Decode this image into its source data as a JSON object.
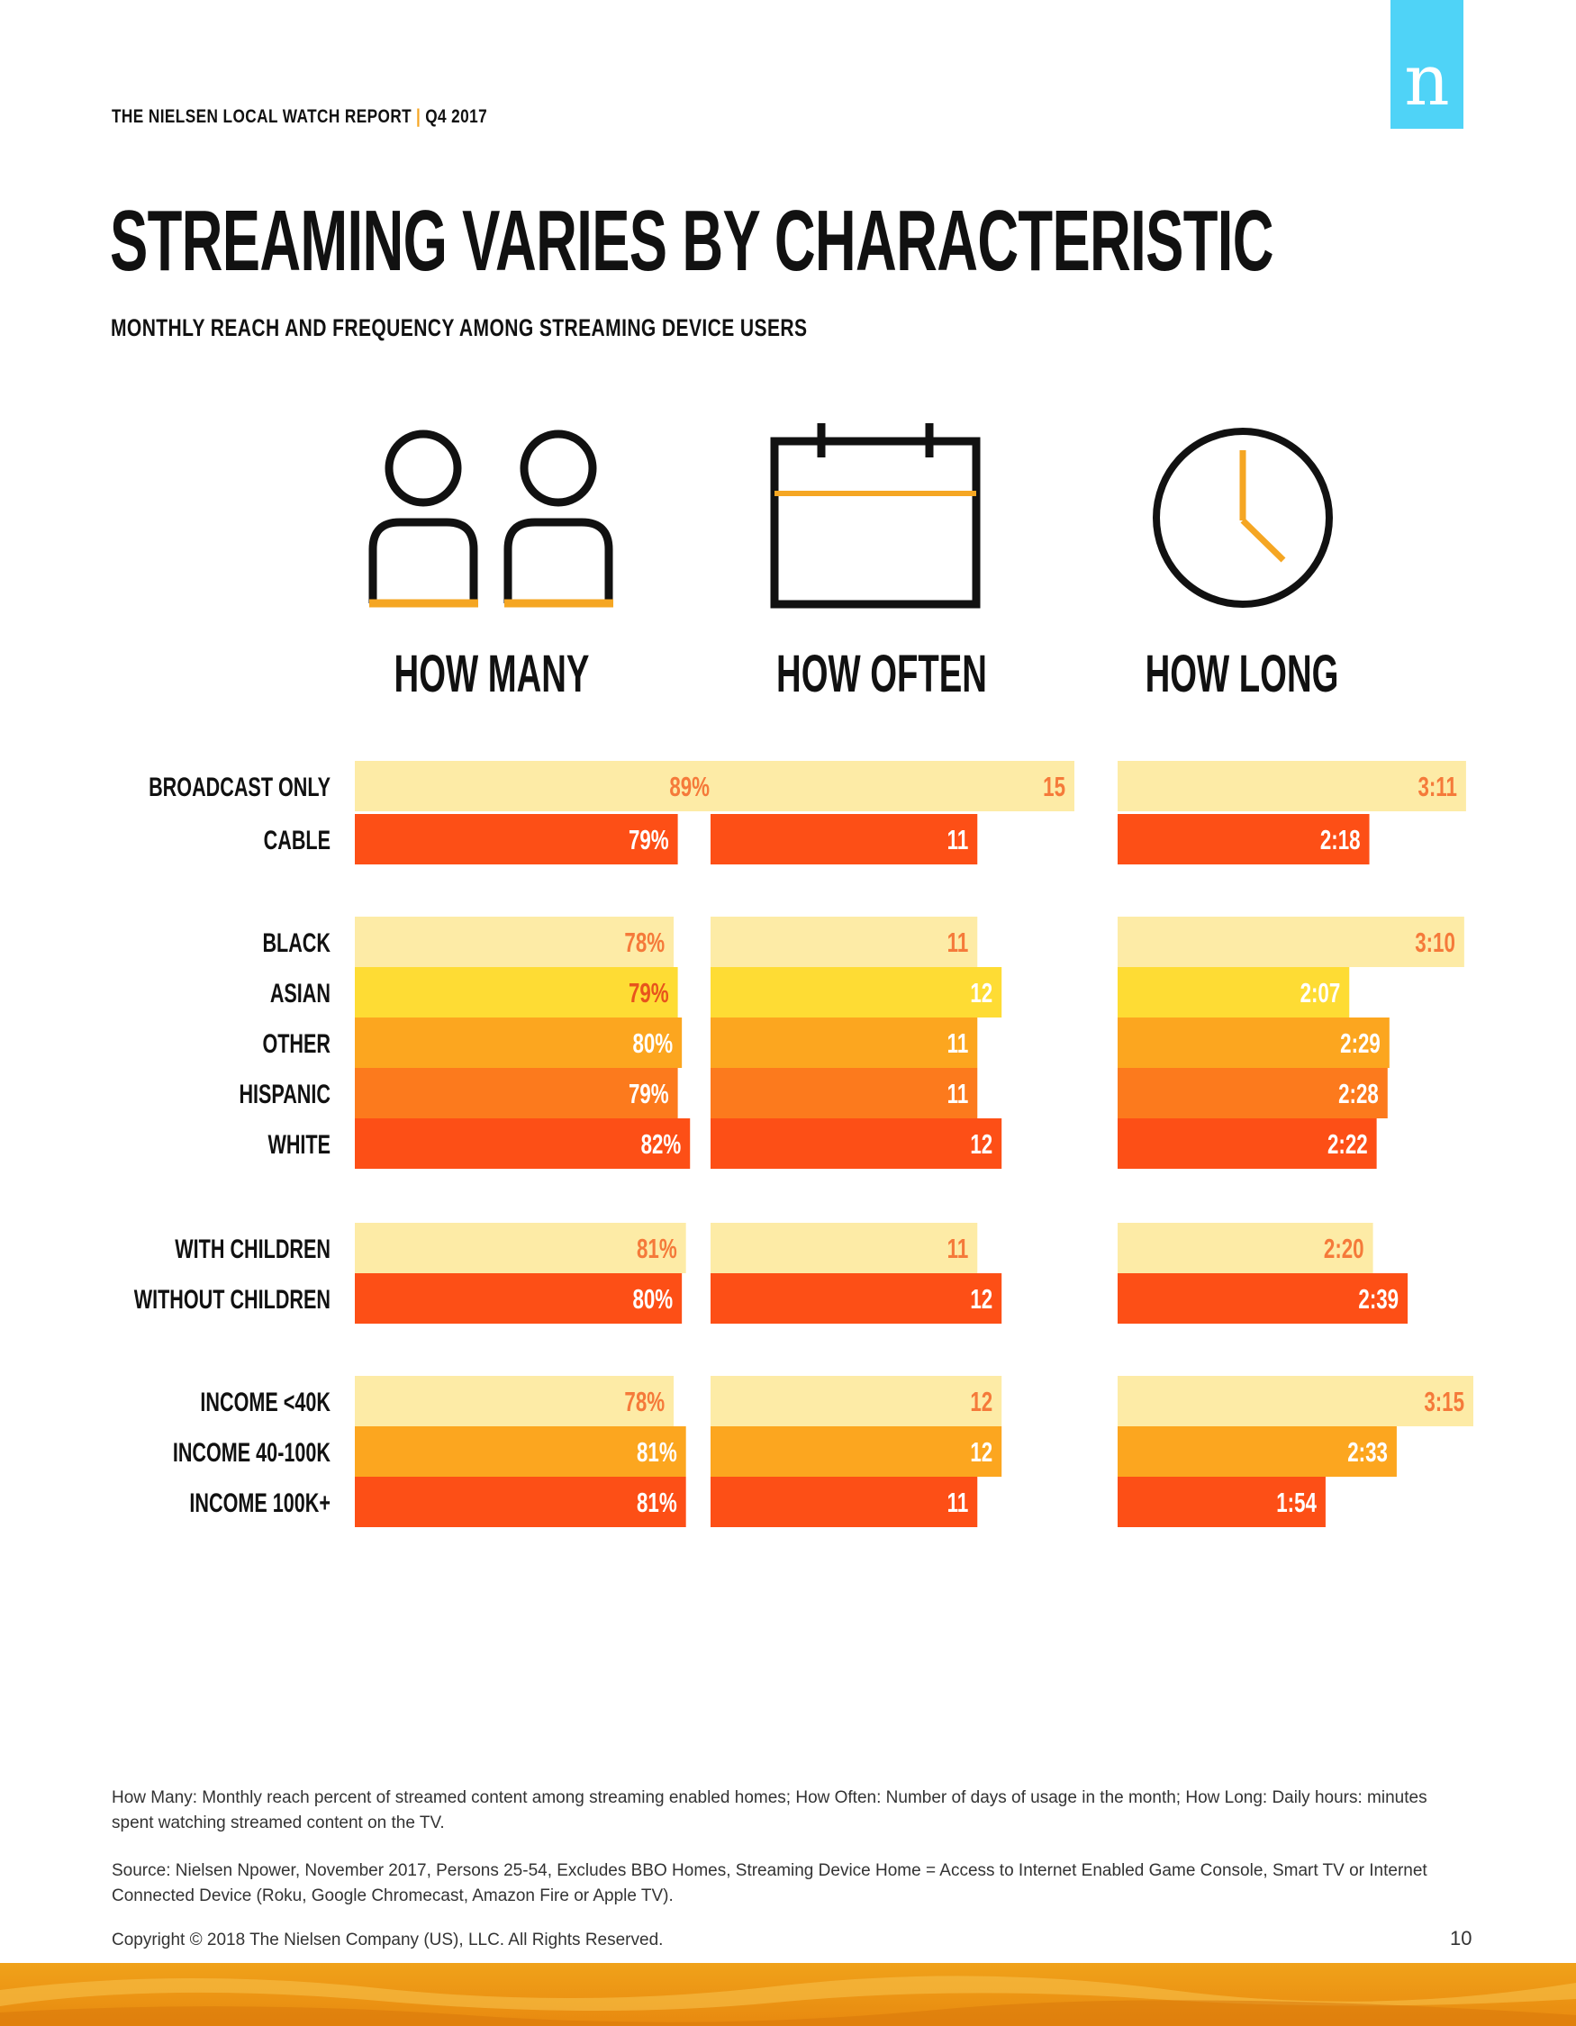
{
  "header": {
    "report": "THE NIELSEN LOCAL WATCH REPORT",
    "separator": "|",
    "period": "Q4 2017"
  },
  "logo": {
    "letter": "n",
    "color": "#4fd3f7"
  },
  "title": "STREAMING VARIES BY CHARACTERISTIC",
  "subtitle": "MONTHLY REACH AND FREQUENCY AMONG STREAMING DEVICE USERS",
  "icons": [
    "people-icon",
    "calendar-icon",
    "clock-icon"
  ],
  "columns": [
    "HOW MANY",
    "HOW OFTEN",
    "HOW LONG"
  ],
  "colors": {
    "pale": "#fdeba6",
    "yellow": "#fedc34",
    "amber": "#fca61f",
    "orange": "#fc7a1d",
    "red": "#fd4f16",
    "label_on_pale": "#f57a3a",
    "label_on_yellow": "#e8541c",
    "icon_accent": "#f5a623"
  },
  "chart_data": {
    "type": "bar",
    "orientation": "horizontal",
    "categories": [
      "BROADCAST ONLY",
      "CABLE",
      "BLACK",
      "ASIAN",
      "OTHER",
      "HISPANIC",
      "WHITE",
      "WITH CHILDREN",
      "WITHOUT CHILDREN",
      "INCOME <40K",
      "INCOME 40-100K",
      "INCOME 100K+"
    ],
    "groups": [
      [
        "BROADCAST ONLY",
        "CABLE"
      ],
      [
        "BLACK",
        "ASIAN",
        "OTHER",
        "HISPANIC",
        "WHITE"
      ],
      [
        "WITH CHILDREN",
        "WITHOUT CHILDREN"
      ],
      [
        "INCOME <40K",
        "INCOME 40-100K",
        "INCOME 100K+"
      ]
    ],
    "bar_colors": [
      "pale",
      "red",
      "pale",
      "yellow",
      "amber",
      "orange",
      "red",
      "pale",
      "red",
      "pale",
      "amber",
      "red"
    ],
    "series": [
      {
        "name": "HOW MANY",
        "values": [
          89,
          79,
          78,
          79,
          80,
          79,
          82,
          81,
          80,
          78,
          81,
          81
        ],
        "labels": [
          "89%",
          "79%",
          "78%",
          "79%",
          "80%",
          "79%",
          "82%",
          "81%",
          "80%",
          "78%",
          "81%",
          "81%"
        ]
      },
      {
        "name": "HOW OFTEN",
        "values": [
          15,
          11,
          11,
          12,
          11,
          11,
          12,
          11,
          12,
          12,
          12,
          11
        ],
        "labels": [
          "15",
          "11",
          "11",
          "12",
          "11",
          "11",
          "12",
          "11",
          "12",
          "12",
          "12",
          "11"
        ]
      },
      {
        "name": "HOW LONG",
        "values": [
          191,
          138,
          190,
          127,
          149,
          148,
          142,
          140,
          159,
          195,
          153,
          114
        ],
        "labels": [
          "3:11",
          "2:18",
          "3:10",
          "2:07",
          "2:29",
          "2:28",
          "2:22",
          "2:20",
          "2:39",
          "3:15",
          "2:33",
          "1:54"
        ]
      }
    ]
  },
  "footnotes": {
    "definitions": "How Many: Monthly reach percent of streamed content among streaming enabled homes; How Often: Number of days of usage in the month; How Long: Daily hours: minutes spent watching streamed content on the TV.",
    "source": "Source: Nielsen Npower, November 2017, Persons 25-54, Excludes BBO Homes, Streaming Device Home = Access to Internet Enabled Game Console, Smart TV or Internet Connected Device (Roku, Google Chromecast, Amazon Fire or Apple TV).",
    "copyright": "Copyright © 2018 The Nielsen Company (US), LLC. All Rights Reserved."
  },
  "page_number": "10"
}
